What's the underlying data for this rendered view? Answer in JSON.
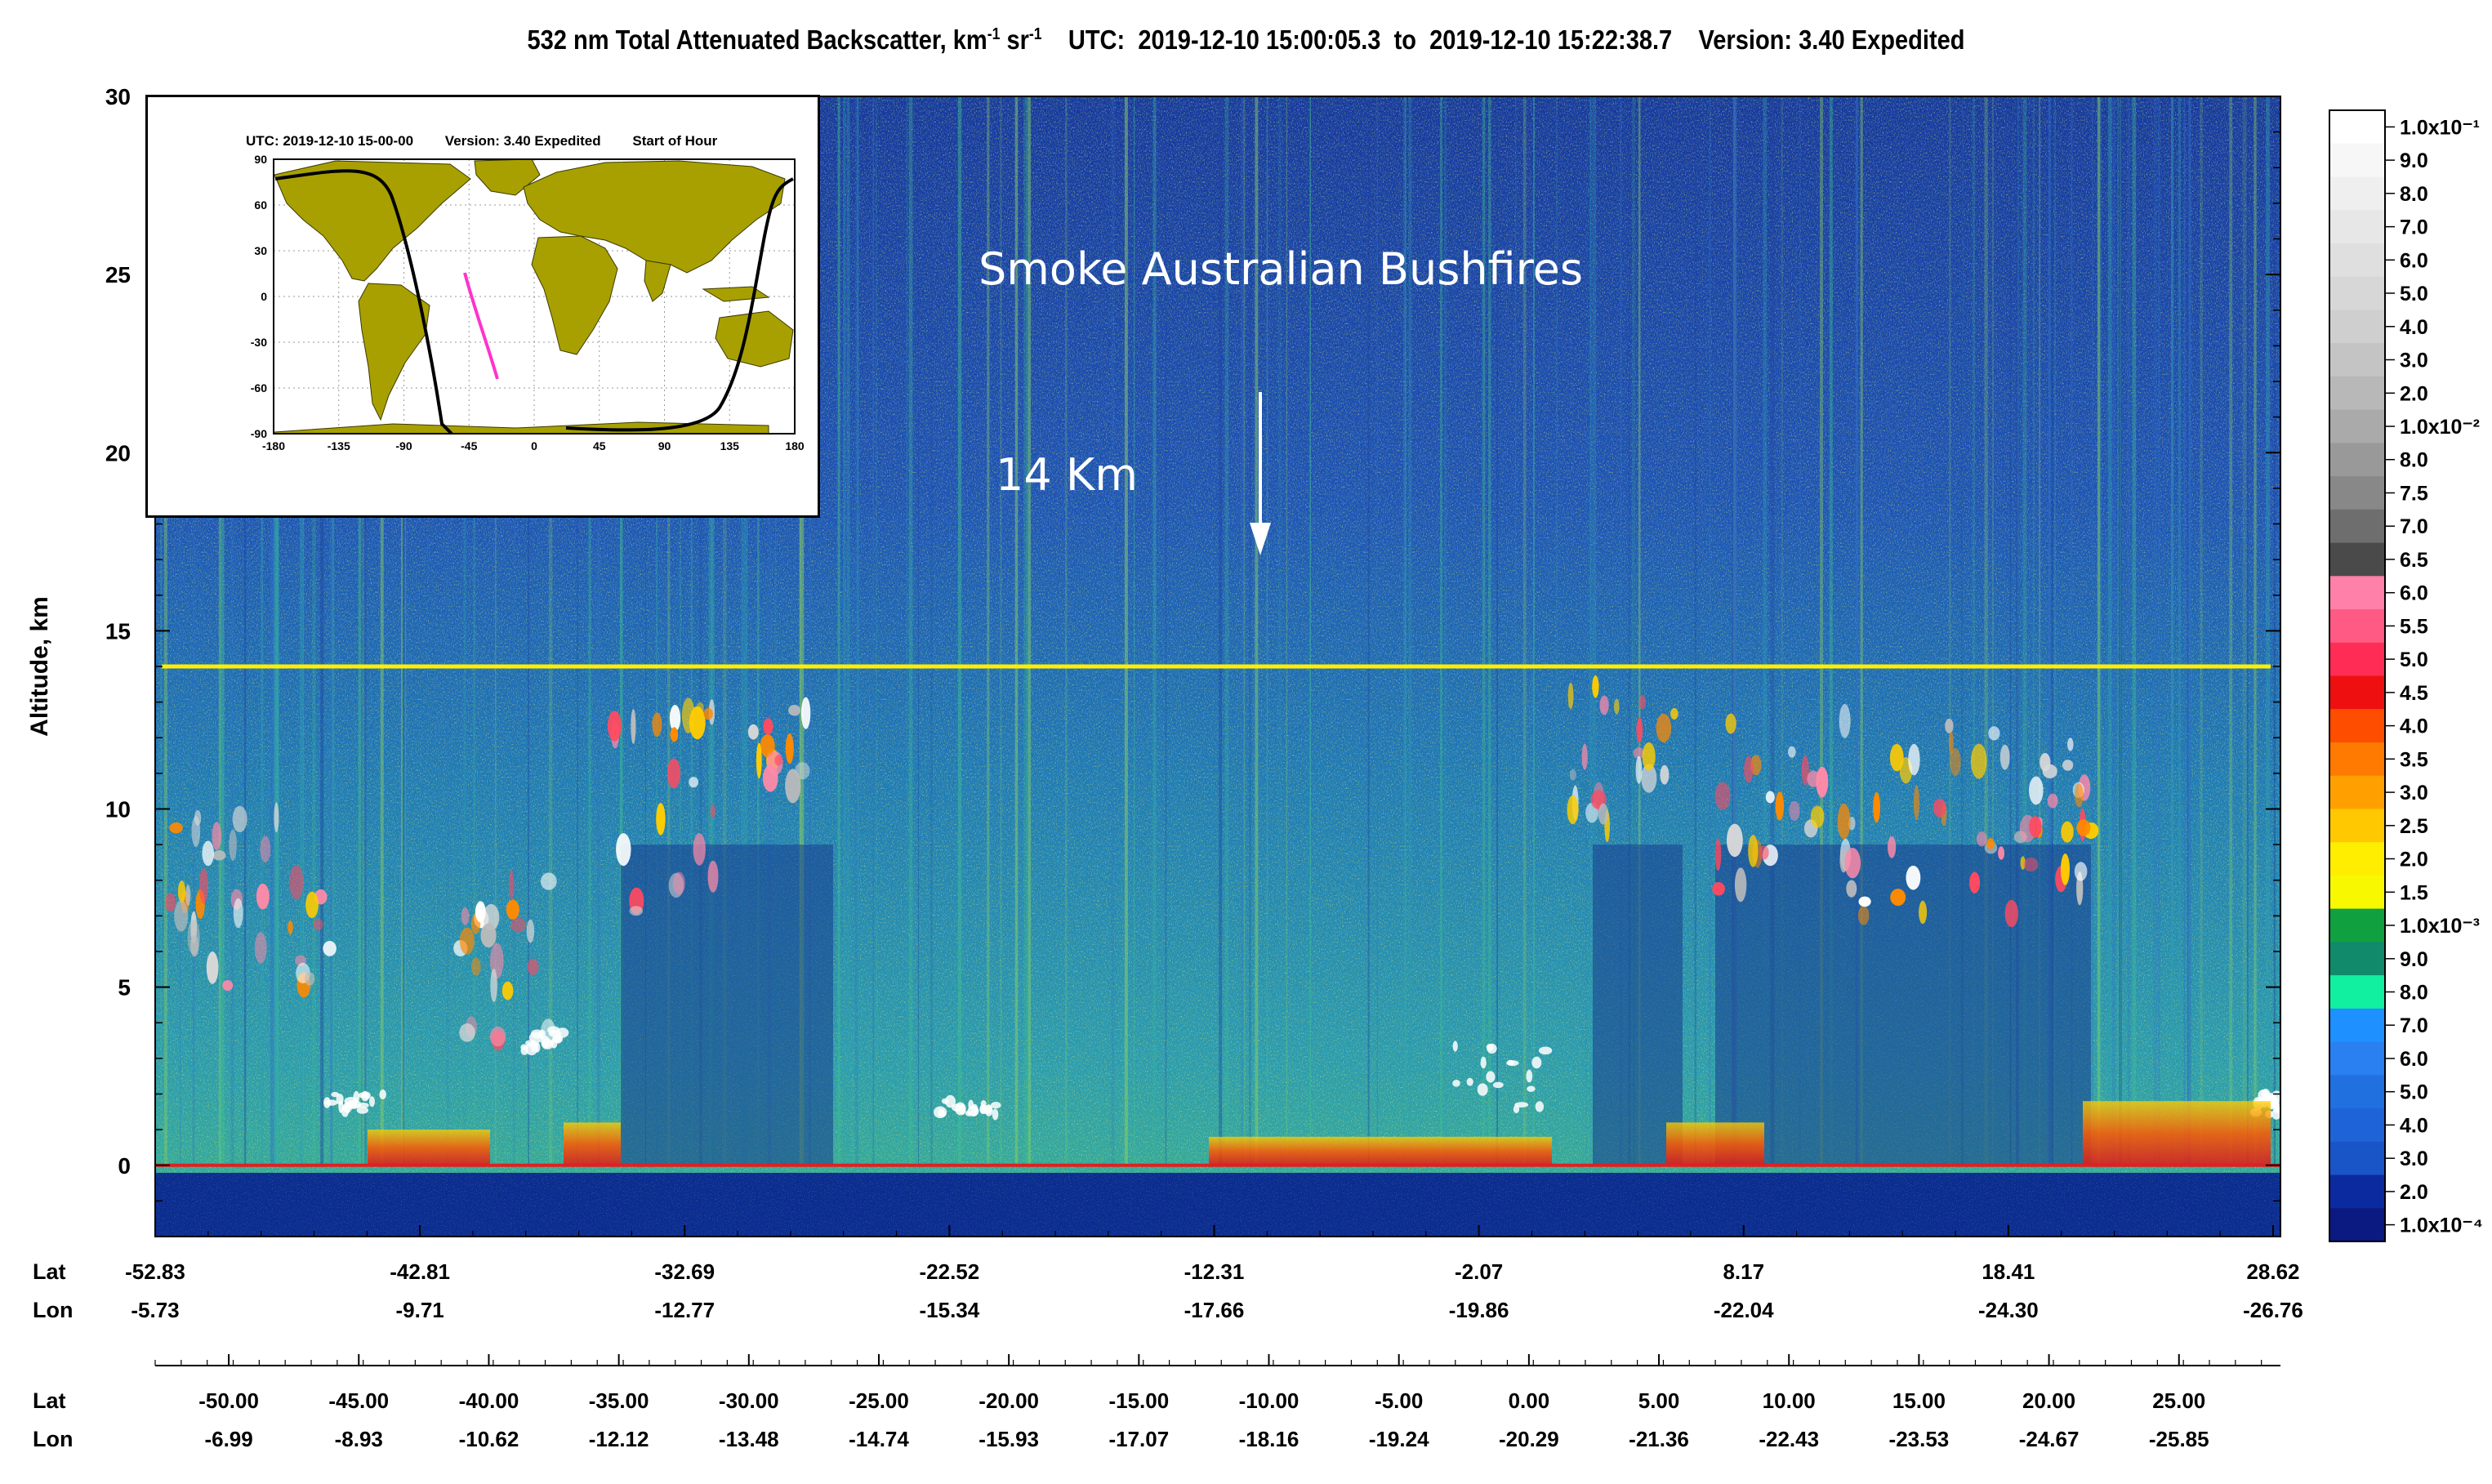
{
  "title": {
    "prefix": "532 nm Total Attenuated Backscatter, km",
    "sup1": "-1",
    "mid": " sr",
    "sup2": "-1",
    "utc_label": "UTC:",
    "utc_start": "2019-12-10 15:00:05.3",
    "to": "to",
    "utc_end": "2019-12-10 15:22:38.7",
    "version": "Version: 3.40 Expedited"
  },
  "annotations": {
    "smoke_label": "Smoke Australian Bushfires",
    "height_label": "14 Km"
  },
  "inset": {
    "utc": "UTC: 2019-12-10  15-00-00",
    "version": "Version: 3.40  Expedited",
    "start": "Start of Hour",
    "lat_ticks": [
      "90",
      "60",
      "30",
      "0",
      "-30",
      "-60",
      "-90"
    ],
    "lon_ticks": [
      "-180",
      "-135",
      "-90",
      "-45",
      "0",
      "45",
      "90",
      "135",
      "180"
    ]
  },
  "colors": {
    "smoke_line": "#ffee00",
    "surface_line": "#e02020",
    "track_current": "#ff33cc",
    "track_other": "#000000",
    "land": "#a8a000"
  },
  "chart_data": {
    "type": "heatmap",
    "title": "532 nm Total Attenuated Backscatter, km-1 sr-1   UTC: 2019-12-10 15:00:05.3 to 2019-12-10 15:22:38.7   Version: 3.40 Expedited",
    "ylabel": "Altitude, km",
    "ylim": [
      -2,
      30
    ],
    "y_ticks": [
      "30",
      "25",
      "20",
      "15",
      "10",
      "5",
      "0"
    ],
    "smoke_layer_altitude_km": 14,
    "surface_altitude_km": 0,
    "axis1": {
      "lat_label": "Lat",
      "lon_label": "Lon",
      "lat": [
        "-52.83",
        "-42.81",
        "-32.69",
        "-22.52",
        "-12.31",
        "-2.07",
        "8.17",
        "18.41",
        "28.62"
      ],
      "lon": [
        "-5.73",
        "-9.71",
        "-12.77",
        "-15.34",
        "-17.66",
        "-19.86",
        "-22.04",
        "-24.30",
        "-26.76"
      ]
    },
    "axis2": {
      "lat_label": "Lat",
      "lon_label": "Lon",
      "lat": [
        "-50.00",
        "-45.00",
        "-40.00",
        "-35.00",
        "-30.00",
        "-25.00",
        "-20.00",
        "-15.00",
        "-10.00",
        "-5.00",
        "0.00",
        "5.00",
        "10.00",
        "15.00",
        "20.00",
        "25.00"
      ],
      "lon": [
        "-6.99",
        "-8.93",
        "-10.62",
        "-12.12",
        "-13.48",
        "-14.74",
        "-15.93",
        "-17.07",
        "-18.16",
        "-19.24",
        "-20.29",
        "-21.36",
        "-22.43",
        "-23.53",
        "-24.67",
        "-25.85"
      ]
    },
    "colorbar": [
      {
        "label": "1.0x10⁻¹",
        "color": "#ffffff"
      },
      {
        "label": "9.0",
        "color": "#f7f7f7"
      },
      {
        "label": "8.0",
        "color": "#efefef"
      },
      {
        "label": "7.0",
        "color": "#e7e7e7"
      },
      {
        "label": "6.0",
        "color": "#dfdfdf"
      },
      {
        "label": "5.0",
        "color": "#d7d7d7"
      },
      {
        "label": "4.0",
        "color": "#cfcfcf"
      },
      {
        "label": "3.0",
        "color": "#c4c4c4"
      },
      {
        "label": "2.0",
        "color": "#b8b8b8"
      },
      {
        "label": "1.0x10⁻²",
        "color": "#aaaaaa"
      },
      {
        "label": "8.0",
        "color": "#999999"
      },
      {
        "label": "7.5",
        "color": "#888888"
      },
      {
        "label": "7.0",
        "color": "#6e6e6e"
      },
      {
        "label": "6.5",
        "color": "#4a4a4a"
      },
      {
        "label": "6.0",
        "color": "#ff80a8"
      },
      {
        "label": "5.5",
        "color": "#ff5a84"
      },
      {
        "label": "5.0",
        "color": "#ff2d55"
      },
      {
        "label": "4.5",
        "color": "#ee1010"
      },
      {
        "label": "4.0",
        "color": "#ff4d00"
      },
      {
        "label": "3.5",
        "color": "#ff7a00"
      },
      {
        "label": "3.0",
        "color": "#ffa000"
      },
      {
        "label": "2.5",
        "color": "#ffc800"
      },
      {
        "label": "2.0",
        "color": "#ffee00"
      },
      {
        "label": "1.5",
        "color": "#f8f800"
      },
      {
        "label": "1.0x10⁻³",
        "color": "#10a040"
      },
      {
        "label": "9.0",
        "color": "#108a6a"
      },
      {
        "label": "8.0",
        "color": "#10f0a0"
      },
      {
        "label": "7.0",
        "color": "#1e90ff"
      },
      {
        "label": "6.0",
        "color": "#2a80f0"
      },
      {
        "label": "5.0",
        "color": "#2070e0"
      },
      {
        "label": "4.0",
        "color": "#1e64d8"
      },
      {
        "label": "3.0",
        "color": "#1a55c8"
      },
      {
        "label": "2.0",
        "color": "#0c2aa0"
      },
      {
        "label": "1.0x10⁻⁴",
        "color": "#0a1a80"
      }
    ]
  }
}
